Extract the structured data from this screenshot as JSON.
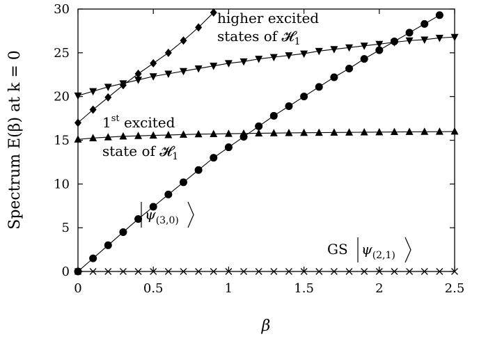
{
  "chart_data": {
    "type": "line",
    "xlabel": "β",
    "ylabel": "Spectrum E(β) at k = 0",
    "xlim": [
      0,
      2.5
    ],
    "ylim": [
      0,
      30
    ],
    "xticks": [
      "0",
      "0.5",
      "1",
      "1.5",
      "2",
      "2.5"
    ],
    "yticks": [
      "0",
      "5",
      "10",
      "15",
      "20",
      "25",
      "30"
    ],
    "grid": false,
    "legend": "none",
    "line_color": "#000000",
    "series": [
      {
        "marker": "cross",
        "x": [
          0,
          0.1,
          0.2,
          0.3,
          0.4,
          0.5,
          0.6,
          0.7,
          0.8,
          0.9,
          1.0,
          1.1,
          1.2,
          1.3,
          1.4,
          1.5,
          1.6,
          1.7,
          1.8,
          1.9,
          2.0,
          2.1,
          2.2,
          2.3,
          2.4,
          2.5
        ],
        "y": [
          0,
          0,
          0,
          0,
          0,
          0,
          0,
          0,
          0,
          0,
          0,
          0,
          0,
          0,
          0,
          0,
          0,
          0,
          0,
          0,
          0,
          0,
          0,
          0,
          0,
          0
        ]
      },
      {
        "marker": "circle",
        "x": [
          0,
          0.1,
          0.2,
          0.3,
          0.4,
          0.5,
          0.6,
          0.7,
          0.8,
          0.9,
          1.0,
          1.1,
          1.2,
          1.3,
          1.4,
          1.5,
          1.6,
          1.7,
          1.8,
          1.9,
          2.0,
          2.1,
          2.2,
          2.3,
          2.4
        ],
        "y": [
          0,
          1.5,
          3.0,
          4.5,
          6.0,
          7.4,
          8.8,
          10.2,
          11.6,
          13.0,
          14.2,
          15.4,
          16.6,
          17.8,
          18.9,
          20.0,
          21.1,
          22.2,
          23.2,
          24.3,
          25.3,
          26.3,
          27.3,
          28.3,
          29.3
        ]
      },
      {
        "marker": "triangle-up",
        "x": [
          0,
          0.1,
          0.2,
          0.3,
          0.4,
          0.5,
          0.6,
          0.7,
          0.8,
          0.9,
          1.0,
          1.1,
          1.2,
          1.3,
          1.4,
          1.5,
          1.6,
          1.7,
          1.8,
          1.9,
          2.0,
          2.1,
          2.2,
          2.3,
          2.4,
          2.5
        ],
        "y": [
          15.1,
          15.25,
          15.35,
          15.45,
          15.5,
          15.55,
          15.6,
          15.65,
          15.7,
          15.72,
          15.75,
          15.77,
          15.8,
          15.82,
          15.84,
          15.86,
          15.87,
          15.89,
          15.9,
          15.92,
          15.93,
          15.95,
          15.96,
          15.97,
          15.98,
          16.0
        ]
      },
      {
        "marker": "triangle-down",
        "x": [
          0,
          0.1,
          0.2,
          0.3,
          0.4,
          0.5,
          0.6,
          0.7,
          0.8,
          0.9,
          1.0,
          1.1,
          1.2,
          1.3,
          1.4,
          1.5,
          1.6,
          1.7,
          1.8,
          1.9,
          2.0,
          2.1,
          2.2,
          2.3,
          2.4,
          2.5
        ],
        "y": [
          20.1,
          20.6,
          21.1,
          21.5,
          21.9,
          22.3,
          22.6,
          22.9,
          23.2,
          23.5,
          23.8,
          24.0,
          24.3,
          24.5,
          24.7,
          24.9,
          25.2,
          25.4,
          25.6,
          25.8,
          26.0,
          26.2,
          26.4,
          26.5,
          26.7,
          26.8
        ]
      },
      {
        "marker": "diamond",
        "x": [
          0,
          0.1,
          0.2,
          0.3,
          0.4,
          0.5,
          0.6,
          0.7,
          0.8,
          0.9
        ],
        "y": [
          17.0,
          18.5,
          19.9,
          21.3,
          22.6,
          23.8,
          25.0,
          26.4,
          27.9,
          29.6
        ]
      }
    ],
    "annotations": {
      "higher_line1": "higher excited",
      "higher_line2": "states of 𝓗",
      "higher_sub": "1",
      "first_base": "1",
      "first_sup": "st",
      "first_word": " excited",
      "first_line2": "state of 𝓗",
      "first_sub": "1",
      "psi30_main": "ψ",
      "psi30_sub": "(3,0)",
      "gs_prefix": "GS ",
      "psi21_main": "ψ",
      "psi21_sub": "(2,1)"
    }
  }
}
